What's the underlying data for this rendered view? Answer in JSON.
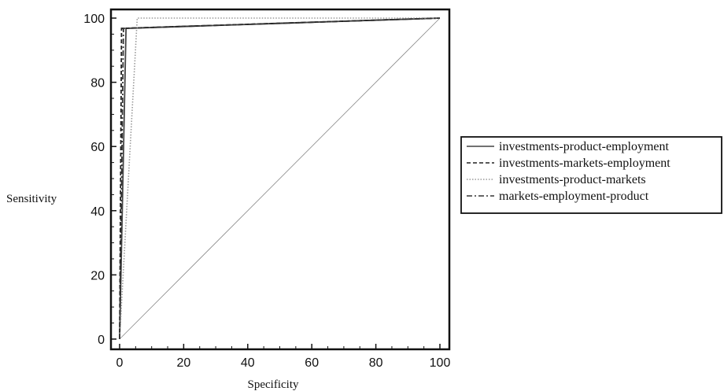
{
  "chart_data": {
    "type": "line",
    "title": "",
    "xlabel": "Specificity",
    "ylabel": "Sensitivity",
    "xlim": [
      0,
      100
    ],
    "ylim": [
      0,
      100
    ],
    "xticks": [
      0,
      20,
      40,
      60,
      80,
      100
    ],
    "yticks": [
      0,
      20,
      40,
      60,
      80,
      100
    ],
    "grid": false,
    "legend_position": "right",
    "series": [
      {
        "name": "investments-product-employment",
        "style": "solid",
        "color": "#444444",
        "x": [
          0,
          2,
          100
        ],
        "y": [
          0,
          96.8,
          100
        ]
      },
      {
        "name": "investments-markets-employment",
        "style": "dashed",
        "color": "#222222",
        "x": [
          0,
          0.6,
          100
        ],
        "y": [
          0,
          96.8,
          100
        ]
      },
      {
        "name": "investments-product-markets",
        "style": "dotted",
        "color": "#999999",
        "x": [
          0,
          5.5,
          100
        ],
        "y": [
          0,
          100,
          100
        ]
      },
      {
        "name": "markets-employment-product",
        "style": "dashdot",
        "color": "#333333",
        "x": [
          0,
          1.2,
          100
        ],
        "y": [
          0,
          96.8,
          100
        ]
      }
    ],
    "reference_line": {
      "x": [
        0,
        100
      ],
      "y": [
        0,
        100
      ],
      "color": "#888888"
    }
  }
}
